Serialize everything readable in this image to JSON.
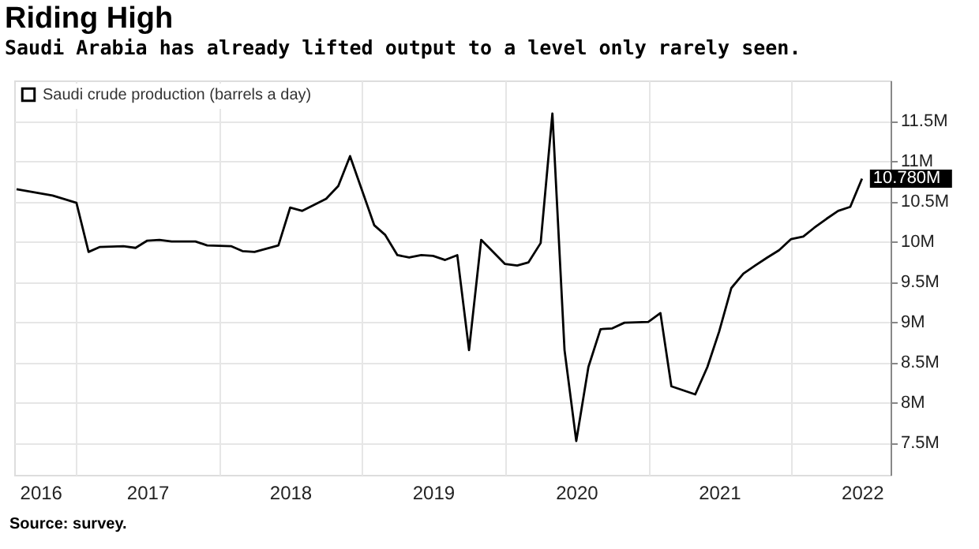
{
  "chart_data": {
    "type": "line",
    "title": "Riding High",
    "subtitle": "Saudi Arabia has already lifted output to a level only rarely seen.",
    "annotations": [
      "Source: survey."
    ],
    "x": [
      "2016-08",
      "2016-11",
      "2017-01",
      "2017-02",
      "2017-03",
      "2017-05",
      "2017-06",
      "2017-07",
      "2017-08",
      "2017-09",
      "2017-11",
      "2017-12",
      "2018-02",
      "2018-03",
      "2018-04",
      "2018-06",
      "2018-07",
      "2018-08",
      "2018-10",
      "2018-11",
      "2018-12",
      "2019-02",
      "2019-03",
      "2019-04",
      "2019-05",
      "2019-06",
      "2019-07",
      "2019-08",
      "2019-09",
      "2019-10",
      "2019-11",
      "2020-01",
      "2020-02",
      "2020-03",
      "2020-04",
      "2020-05",
      "2020-06",
      "2020-07",
      "2020-08",
      "2020-09",
      "2020-10",
      "2020-11",
      "2021-01",
      "2021-02",
      "2021-03",
      "2021-05",
      "2021-06",
      "2021-07",
      "2021-08",
      "2021-09",
      "2021-10",
      "2021-11",
      "2021-12",
      "2022-01",
      "2022-02",
      "2022-03",
      "2022-04",
      "2022-05",
      "2022-06",
      "2022-07"
    ],
    "series": [
      {
        "name": "Saudi crude production (barrels a day)",
        "color": "#000000",
        "values": [
          10650000,
          10570000,
          10480000,
          9870000,
          9930000,
          9940000,
          9920000,
          10010000,
          10020000,
          10000000,
          10000000,
          9950000,
          9940000,
          9880000,
          9870000,
          9950000,
          10420000,
          10380000,
          10530000,
          10690000,
          11060000,
          10200000,
          10080000,
          9830000,
          9800000,
          9830000,
          9820000,
          9770000,
          9830000,
          8650000,
          10020000,
          9720000,
          9700000,
          9740000,
          9980000,
          11590000,
          8650000,
          7520000,
          8440000,
          8910000,
          8920000,
          8990000,
          9000000,
          9110000,
          8200000,
          8100000,
          8440000,
          8880000,
          9420000,
          9600000,
          9700000,
          9800000,
          9890000,
          10030000,
          10060000,
          10170000,
          10280000,
          10380000,
          10430000,
          10780000
        ],
        "value_labels": [
          null,
          null,
          null,
          null,
          null,
          null,
          null,
          null,
          null,
          null,
          null,
          null,
          null,
          null,
          null,
          null,
          null,
          null,
          null,
          null,
          null,
          null,
          null,
          null,
          null,
          null,
          null,
          null,
          null,
          null,
          null,
          null,
          null,
          null,
          null,
          null,
          null,
          null,
          null,
          null,
          null,
          null,
          null,
          null,
          null,
          null,
          null,
          null,
          null,
          null,
          null,
          null,
          null,
          null,
          null,
          null,
          null,
          null,
          null,
          "10.780M"
        ]
      }
    ],
    "xlim": [
      "2016-07-26",
      "2022-09-12"
    ],
    "xticks": [
      {
        "value": "2016-10-01",
        "label": "2016"
      },
      {
        "value": "2017-01-01",
        "label": null
      },
      {
        "value": "2017-07-01",
        "label": "2017"
      },
      {
        "value": "2018-01-01",
        "label": null
      },
      {
        "value": "2018-07-01",
        "label": "2018"
      },
      {
        "value": "2019-01-01",
        "label": null
      },
      {
        "value": "2019-07-01",
        "label": "2019"
      },
      {
        "value": "2020-01-01",
        "label": null
      },
      {
        "value": "2020-07-01",
        "label": "2020"
      },
      {
        "value": "2021-01-01",
        "label": null
      },
      {
        "value": "2021-07-01",
        "label": "2021"
      },
      {
        "value": "2022-01-01",
        "label": null
      },
      {
        "value": "2022-07-01",
        "label": "2022"
      }
    ],
    "ylim": [
      7100000,
      12000000
    ],
    "yticks": [
      {
        "value": 7500000,
        "label": "7.5M"
      },
      {
        "value": 8000000,
        "label": "8M"
      },
      {
        "value": 8500000,
        "label": "8.5M"
      },
      {
        "value": 9000000,
        "label": "9M"
      },
      {
        "value": 9500000,
        "label": "9.5M"
      },
      {
        "value": 10000000,
        "label": "10M"
      },
      {
        "value": 10500000,
        "label": "10.5M"
      },
      {
        "value": 11000000,
        "label": "11M"
      },
      {
        "value": 11500000,
        "label": "11.5M"
      }
    ],
    "grid": true,
    "legend": "top left",
    "line_style": "solid"
  }
}
